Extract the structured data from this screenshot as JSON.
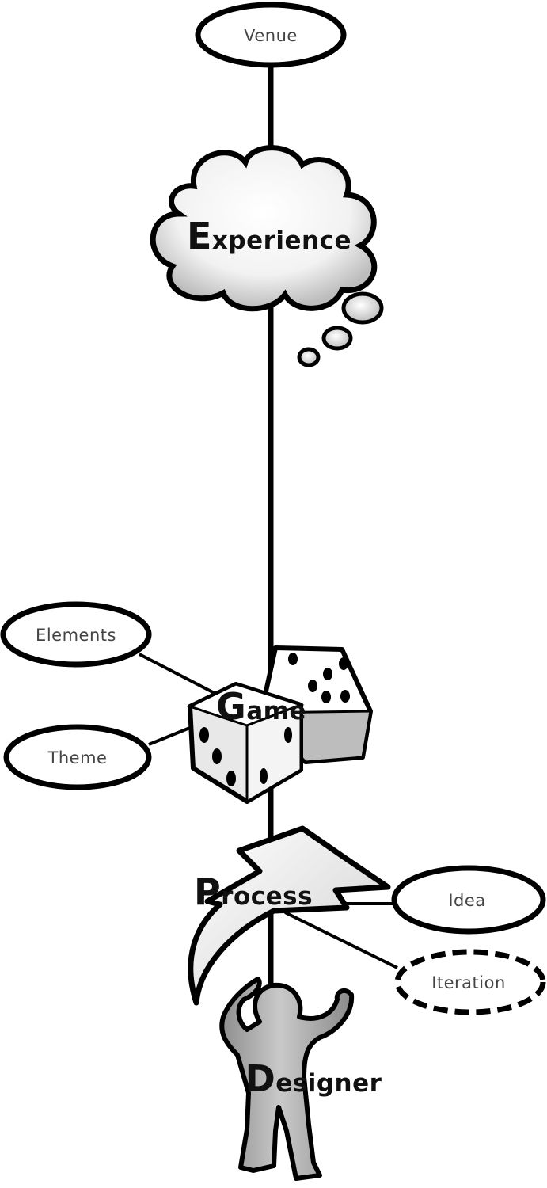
{
  "nodes": {
    "venue": "Venue",
    "experience_initial": "E",
    "experience_rest": "xperience",
    "elements": "Elements",
    "theme": "Theme",
    "game_initial": "G",
    "game_rest": "ame",
    "process_initial": "P",
    "process_rest": "rocess",
    "idea": "Idea",
    "iteration": "Iteration",
    "designer_initial": "D",
    "designer_rest": "esigner"
  },
  "icons": {
    "experience": "thought-cloud-icon",
    "game": "dice-icon",
    "process": "lightning-bolt-icon",
    "designer": "thinking-person-icon"
  }
}
